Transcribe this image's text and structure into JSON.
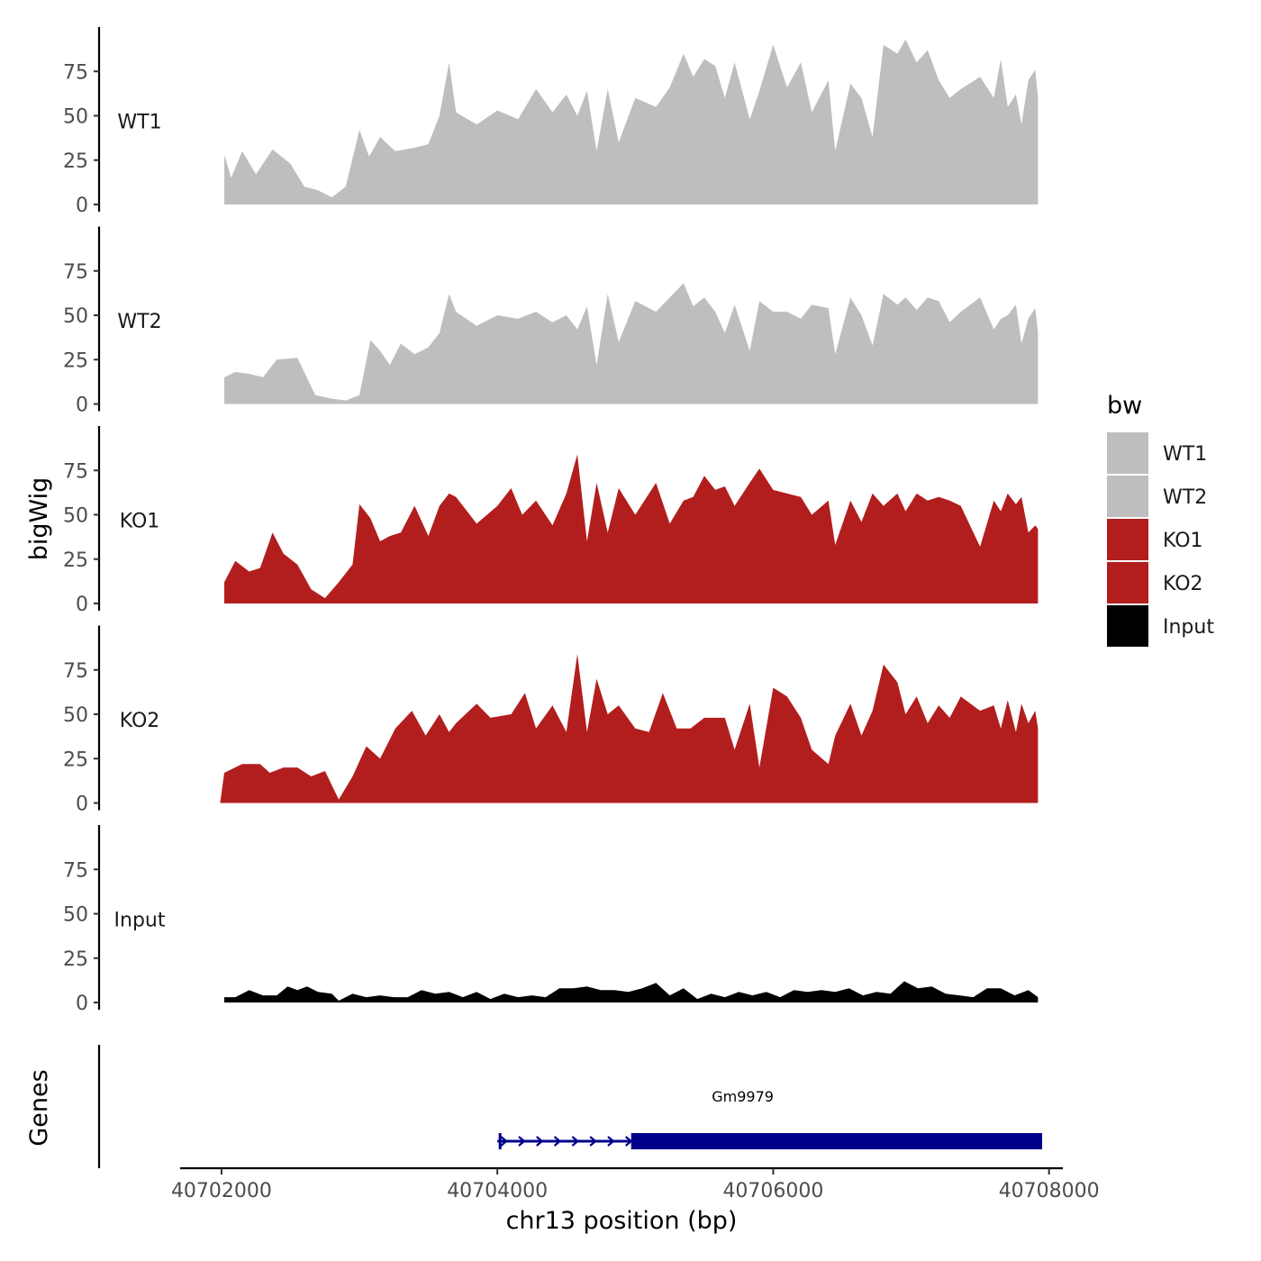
{
  "chart_data": {
    "type": "area",
    "title": "",
    "ylabel": "bigWig",
    "xlabel": "chr13 position (bp)",
    "genes_label": "Genes",
    "xlim": [
      40701700,
      40708100
    ],
    "ylim": [
      0,
      100
    ],
    "y_ticks": [
      0,
      25,
      50,
      75
    ],
    "y_tick_labels": [
      "0",
      "25",
      "50",
      "75"
    ],
    "x_ticks": [
      40702000,
      40704000,
      40706000,
      40708000
    ],
    "x_tick_labels": [
      "40702000",
      "40704000",
      "40706000",
      "40708000"
    ],
    "legend": {
      "title": "bw",
      "position": "right",
      "entries": [
        {
          "label": "WT1",
          "color": "#bebebe"
        },
        {
          "label": "WT2",
          "color": "#bebebe"
        },
        {
          "label": "KO1",
          "color": "#b21e1e"
        },
        {
          "label": "KO2",
          "color": "#b21e1e"
        },
        {
          "label": "Input",
          "color": "#000000"
        }
      ]
    },
    "tracks": [
      {
        "name": "WT1",
        "color": "#bebebe",
        "x": [
          40702020,
          40702070,
          40702150,
          40702250,
          40702370,
          40702500,
          40702600,
          40702700,
          40702800,
          40702900,
          40703000,
          40703070,
          40703150,
          40703260,
          40703400,
          40703500,
          40703580,
          40703650,
          40703700,
          40703850,
          40704000,
          40704150,
          40704280,
          40704400,
          40704500,
          40704580,
          40704650,
          40704720,
          40704800,
          40704880,
          40705000,
          40705150,
          40705250,
          40705350,
          40705420,
          40705500,
          40705580,
          40705650,
          40705720,
          40705830,
          40705900,
          40706000,
          40706100,
          40706200,
          40706280,
          40706400,
          40706450,
          40706560,
          40706640,
          40706720,
          40706800,
          40706900,
          40706960,
          40707040,
          40707120,
          40707200,
          40707280,
          40707360,
          40707500,
          40707600,
          40707650,
          40707700,
          40707760,
          40707800,
          40707850,
          40707900,
          40707920
        ],
        "values": [
          28,
          15,
          30,
          17,
          31,
          23,
          10,
          8,
          4,
          10,
          42,
          27,
          38,
          30,
          32,
          34,
          50,
          80,
          52,
          45,
          53,
          48,
          65,
          52,
          62,
          50,
          64,
          30,
          65,
          35,
          60,
          55,
          66,
          85,
          72,
          82,
          78,
          60,
          80,
          48,
          64,
          90,
          66,
          80,
          52,
          70,
          30,
          68,
          60,
          38,
          90,
          85,
          93,
          80,
          87,
          70,
          60,
          65,
          72,
          60,
          82,
          55,
          62,
          45,
          70,
          76,
          60
        ]
      },
      {
        "name": "WT2",
        "color": "#bebebe",
        "x": [
          40702020,
          40702100,
          40702200,
          40702300,
          40702400,
          40702550,
          40702680,
          40702800,
          40702900,
          40703000,
          40703080,
          40703150,
          40703220,
          40703300,
          40703400,
          40703500,
          40703580,
          40703650,
          40703700,
          40703850,
          40704000,
          40704150,
          40704280,
          40704400,
          40704500,
          40704580,
          40704650,
          40704720,
          40704800,
          40704880,
          40705000,
          40705150,
          40705250,
          40705350,
          40705420,
          40705500,
          40705580,
          40705650,
          40705720,
          40705830,
          40705900,
          40706000,
          40706100,
          40706200,
          40706280,
          40706400,
          40706450,
          40706560,
          40706640,
          40706720,
          40706800,
          40706900,
          40706960,
          40707040,
          40707120,
          40707200,
          40707280,
          40707360,
          40707500,
          40707600,
          40707650,
          40707700,
          40707760,
          40707800,
          40707850,
          40707900,
          40707920
        ],
        "values": [
          15,
          18,
          17,
          15,
          25,
          26,
          5,
          3,
          2,
          5,
          36,
          30,
          22,
          34,
          28,
          32,
          40,
          62,
          52,
          44,
          50,
          48,
          52,
          46,
          50,
          42,
          55,
          22,
          62,
          35,
          58,
          52,
          60,
          68,
          55,
          60,
          52,
          40,
          56,
          30,
          58,
          52,
          52,
          48,
          56,
          54,
          28,
          60,
          50,
          33,
          62,
          56,
          60,
          53,
          60,
          58,
          46,
          52,
          60,
          42,
          48,
          50,
          56,
          34,
          48,
          54,
          40
        ]
      },
      {
        "name": "KO1",
        "color": "#b21e1e",
        "x": [
          40702020,
          40702100,
          40702200,
          40702280,
          40702370,
          40702450,
          40702550,
          40702650,
          40702750,
          40702850,
          40702950,
          40703000,
          40703080,
          40703150,
          40703220,
          40703300,
          40703400,
          40703500,
          40703580,
          40703650,
          40703700,
          40703850,
          40704000,
          40704100,
          40704180,
          40704280,
          40704400,
          40704500,
          40704580,
          40704650,
          40704720,
          40704800,
          40704880,
          40705000,
          40705150,
          40705250,
          40705350,
          40705420,
          40705500,
          40705580,
          40705650,
          40705720,
          40705830,
          40705900,
          40706000,
          40706100,
          40706200,
          40706280,
          40706400,
          40706450,
          40706560,
          40706640,
          40706720,
          40706800,
          40706900,
          40706960,
          40707040,
          40707120,
          40707200,
          40707280,
          40707360,
          40707500,
          40707600,
          40707650,
          40707700,
          40707760,
          40707800,
          40707850,
          40707900,
          40707920
        ],
        "values": [
          12,
          24,
          18,
          20,
          40,
          28,
          22,
          8,
          3,
          12,
          22,
          56,
          48,
          35,
          38,
          40,
          55,
          38,
          55,
          62,
          60,
          45,
          55,
          65,
          50,
          58,
          44,
          62,
          84,
          35,
          68,
          40,
          65,
          50,
          68,
          45,
          58,
          60,
          72,
          64,
          66,
          55,
          68,
          76,
          64,
          62,
          60,
          50,
          58,
          33,
          58,
          46,
          62,
          55,
          62,
          52,
          62,
          58,
          60,
          58,
          55,
          32,
          58,
          52,
          62,
          56,
          60,
          40,
          44,
          42
        ]
      },
      {
        "name": "KO2",
        "color": "#b21e1e",
        "x": [
          40701990,
          40702020,
          40702150,
          40702280,
          40702350,
          40702450,
          40702550,
          40702650,
          40702750,
          40702850,
          40702950,
          40703050,
          40703150,
          40703260,
          40703380,
          40703480,
          40703580,
          40703650,
          40703700,
          40703850,
          40703950,
          40704100,
          40704200,
          40704280,
          40704400,
          40704500,
          40704580,
          40704650,
          40704720,
          40704800,
          40704880,
          40705000,
          40705100,
          40705200,
          40705300,
          40705400,
          40705500,
          40705580,
          40705650,
          40705720,
          40705830,
          40705900,
          40706000,
          40706100,
          40706200,
          40706280,
          40706400,
          40706450,
          40706560,
          40706640,
          40706720,
          40706800,
          40706900,
          40706960,
          40707040,
          40707120,
          40707200,
          40707280,
          40707360,
          40707500,
          40707600,
          40707650,
          40707700,
          40707760,
          40707800,
          40707850,
          40707900,
          40707920
        ],
        "values": [
          0,
          17,
          22,
          22,
          17,
          20,
          20,
          15,
          18,
          2,
          15,
          32,
          25,
          42,
          52,
          38,
          50,
          40,
          45,
          56,
          48,
          50,
          62,
          42,
          55,
          40,
          84,
          40,
          70,
          50,
          55,
          42,
          40,
          62,
          42,
          42,
          48,
          48,
          48,
          30,
          56,
          20,
          65,
          60,
          48,
          30,
          22,
          38,
          56,
          38,
          52,
          78,
          68,
          50,
          60,
          45,
          55,
          48,
          60,
          52,
          55,
          42,
          58,
          40,
          56,
          45,
          52,
          42
        ]
      },
      {
        "name": "Input",
        "color": "#000000",
        "x": [
          40702020,
          40702100,
          40702200,
          40702300,
          40702400,
          40702480,
          40702550,
          40702620,
          40702700,
          40702800,
          40702850,
          40702950,
          40703050,
          40703150,
          40703250,
          40703350,
          40703450,
          40703550,
          40703650,
          40703750,
          40703850,
          40703950,
          40704050,
          40704150,
          40704250,
          40704350,
          40704450,
          40704550,
          40704650,
          40704750,
          40704850,
          40704950,
          40705050,
          40705150,
          40705250,
          40705350,
          40705450,
          40705550,
          40705650,
          40705750,
          40705850,
          40705950,
          40706050,
          40706150,
          40706250,
          40706350,
          40706450,
          40706550,
          40706650,
          40706750,
          40706850,
          40706950,
          40707050,
          40707150,
          40707250,
          40707350,
          40707450,
          40707550,
          40707650,
          40707750,
          40707850,
          40707920
        ],
        "values": [
          3,
          3,
          7,
          4,
          4,
          9,
          7,
          9,
          6,
          5,
          1,
          5,
          3,
          4,
          3,
          3,
          7,
          5,
          6,
          3,
          6,
          2,
          5,
          3,
          4,
          3,
          8,
          8,
          9,
          7,
          7,
          6,
          8,
          11,
          4,
          8,
          2,
          5,
          3,
          6,
          4,
          6,
          3,
          7,
          6,
          7,
          6,
          8,
          4,
          6,
          5,
          12,
          8,
          9,
          5,
          4,
          3,
          8,
          8,
          4,
          7,
          3
        ]
      }
    ],
    "gene": {
      "name": "Gm9979",
      "strand": "+",
      "start": 40704000,
      "end": 40707950,
      "thick_start": 40704970,
      "thick_end": 40707950,
      "color": "#00008b"
    }
  }
}
